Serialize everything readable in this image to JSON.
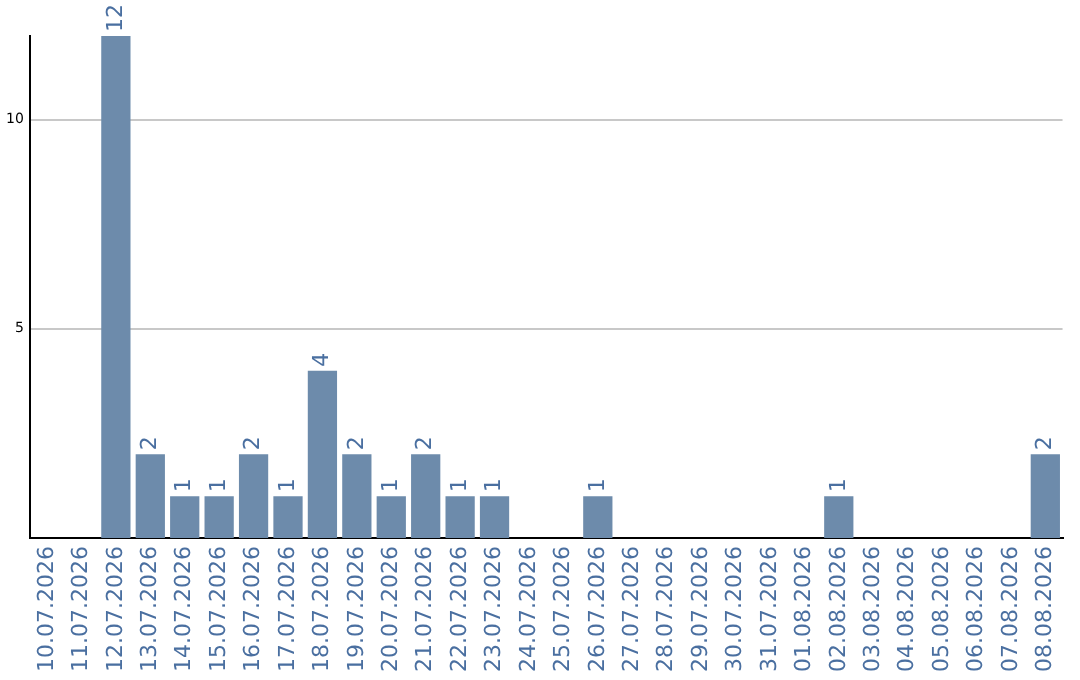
{
  "chart_data": {
    "type": "bar",
    "categories": [
      "10.07.2026",
      "11.07.2026",
      "12.07.2026",
      "13.07.2026",
      "14.07.2026",
      "15.07.2026",
      "16.07.2026",
      "17.07.2026",
      "18.07.2026",
      "19.07.2026",
      "20.07.2026",
      "21.07.2026",
      "22.07.2026",
      "23.07.2026",
      "24.07.2026",
      "25.07.2026",
      "26.07.2026",
      "27.07.2026",
      "28.07.2026",
      "29.07.2026",
      "30.07.2026",
      "31.07.2026",
      "01.08.2026",
      "02.08.2026",
      "03.08.2026",
      "04.08.2026",
      "05.08.2026",
      "06.08.2026",
      "07.08.2026",
      "08.08.2026"
    ],
    "values": [
      0,
      0,
      12,
      2,
      1,
      1,
      2,
      1,
      4,
      2,
      1,
      2,
      1,
      1,
      0,
      0,
      1,
      0,
      0,
      0,
      0,
      0,
      0,
      1,
      0,
      0,
      0,
      0,
      0,
      2
    ],
    "value_labels": [
      null,
      null,
      "12",
      "2",
      "1",
      "1",
      "2",
      "1",
      "4",
      "2",
      "1",
      "2",
      "1",
      "1",
      null,
      null,
      "1",
      null,
      null,
      null,
      null,
      null,
      null,
      "1",
      null,
      null,
      null,
      null,
      null,
      "2"
    ],
    "color": "#6d8bab",
    "ylim": [
      0,
      12
    ],
    "yticks": [
      5,
      10
    ],
    "grid": "y",
    "legend": false
  }
}
